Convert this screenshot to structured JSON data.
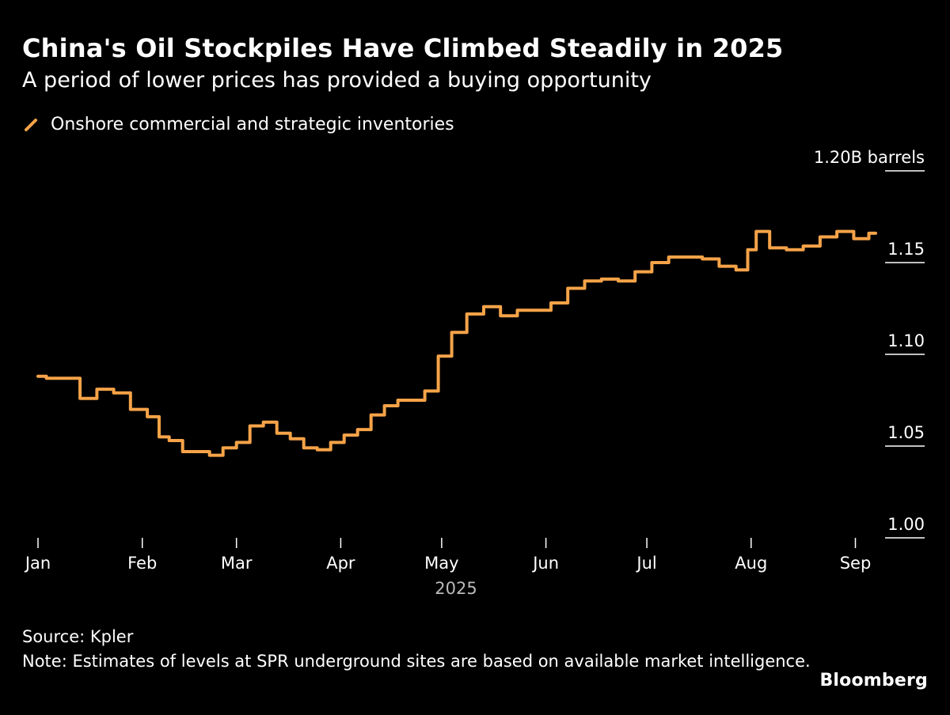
{
  "header": {
    "title": "China's Oil Stockpiles Have Climbed Steadily in 2025",
    "subtitle": "A period of lower prices has provided a buying opportunity"
  },
  "footer": {
    "source": "Source: Kpler",
    "note": "Note: Estimates of levels at SPR underground sites are based on available market intelligence.",
    "brand": "Bloomberg"
  },
  "colors": {
    "background": "#000000",
    "line": "#f6a348",
    "text": "#ffffff",
    "axis_label_muted": "#bbbbbb"
  },
  "chart_data": {
    "type": "line",
    "title": "China's Oil Stockpiles Have Climbed Steadily in 2025",
    "subtitle": "A period of lower prices has provided a buying opportunity",
    "xlabel": "2025",
    "ylabel": "1.20B barrels",
    "x_tick_labels": [
      "Jan",
      "Feb",
      "Mar",
      "Apr",
      "May",
      "Jun",
      "Jul",
      "Aug",
      "Sep"
    ],
    "y_tick_labels": [
      "1.20B barrels",
      "1.15",
      "1.10",
      "1.05",
      "1.00"
    ],
    "y_ticks": [
      1.2,
      1.15,
      1.1,
      1.05,
      1.0
    ],
    "ylim": [
      1.0,
      1.2
    ],
    "xlim": [
      1,
      250
    ],
    "legend_position": "top-left",
    "series": [
      {
        "name": "Onshore commercial and strategic inventories",
        "x": [
          1,
          6,
          11,
          16,
          21,
          26,
          31,
          36,
          38,
          42,
          46,
          50,
          54,
          58,
          62,
          66,
          70,
          74,
          78,
          82,
          86,
          90,
          94,
          98,
          102,
          106,
          110,
          114,
          118,
          122,
          126,
          131,
          136,
          141,
          146,
          151,
          156,
          161,
          166,
          171,
          176,
          181,
          186,
          191,
          196,
          201,
          206,
          211,
          213,
          216,
          221,
          226,
          231,
          236,
          241,
          246,
          250
        ],
        "values": [
          1.088,
          1.087,
          1.087,
          1.076,
          1.081,
          1.079,
          1.07,
          1.066,
          1.055,
          1.053,
          1.047,
          1.047,
          1.045,
          1.049,
          1.052,
          1.061,
          1.063,
          1.057,
          1.054,
          1.049,
          1.048,
          1.052,
          1.056,
          1.059,
          1.067,
          1.072,
          1.075,
          1.075,
          1.08,
          1.099,
          1.112,
          1.122,
          1.126,
          1.121,
          1.124,
          1.124,
          1.128,
          1.136,
          1.14,
          1.141,
          1.14,
          1.145,
          1.15,
          1.153,
          1.153,
          1.152,
          1.148,
          1.146,
          1.157,
          1.167,
          1.158,
          1.157,
          1.159,
          1.164,
          1.167,
          1.163,
          1.166
        ]
      }
    ]
  }
}
